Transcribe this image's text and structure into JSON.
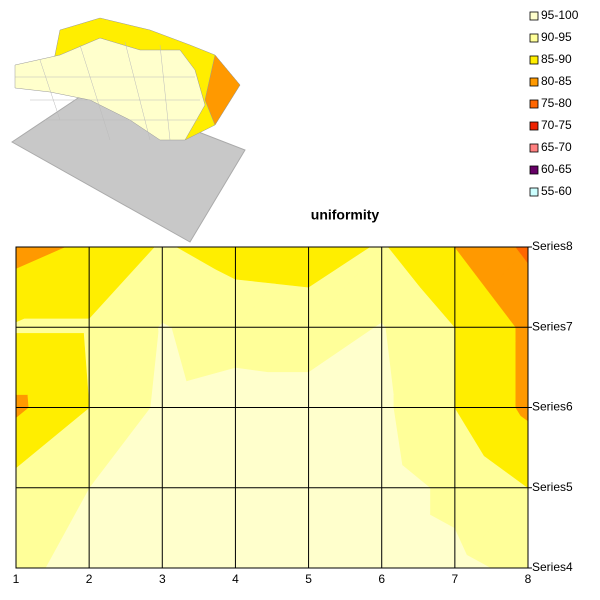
{
  "chart_data": {
    "type": "contour",
    "title": "uniformity",
    "x": [
      1,
      2,
      3,
      4,
      5,
      6,
      7,
      8
    ],
    "xlim": [
      1,
      8
    ],
    "xticks": [
      1,
      2,
      3,
      4,
      5,
      6,
      7,
      8
    ],
    "series": [
      {
        "name": "Series4",
        "values": [
          94,
          96.5,
          97,
          97.5,
          97.5,
          97,
          96,
          94
        ]
      },
      {
        "name": "Series5",
        "values": [
          92,
          95,
          97,
          98,
          98,
          97,
          94,
          90
        ]
      },
      {
        "name": "Series6",
        "values": [
          84,
          90,
          96,
          97,
          97,
          96,
          90,
          84
        ]
      },
      {
        "name": "Series7",
        "values": [
          90.5,
          90.5,
          95.3,
          93,
          92.5,
          95.3,
          90,
          84
        ]
      },
      {
        "name": "Series8",
        "values": [
          83,
          86,
          90.5,
          88,
          87.5,
          90.5,
          85,
          79
        ]
      }
    ],
    "bands": [
      {
        "name": "95-100",
        "color": "#ffffcc"
      },
      {
        "name": "90-95",
        "color": "#ffff99"
      },
      {
        "name": "85-90",
        "color": "#ffee00"
      },
      {
        "name": "80-85",
        "color": "#ff9900"
      },
      {
        "name": "75-80",
        "color": "#ff6600"
      },
      {
        "name": "70-75",
        "color": "#ee2200"
      },
      {
        "name": "65-70",
        "color": "#ff8080"
      },
      {
        "name": "60-65",
        "color": "#660066"
      },
      {
        "name": "55-60",
        "color": "#ccffff"
      }
    ],
    "legend": "top-right",
    "grid": true
  }
}
